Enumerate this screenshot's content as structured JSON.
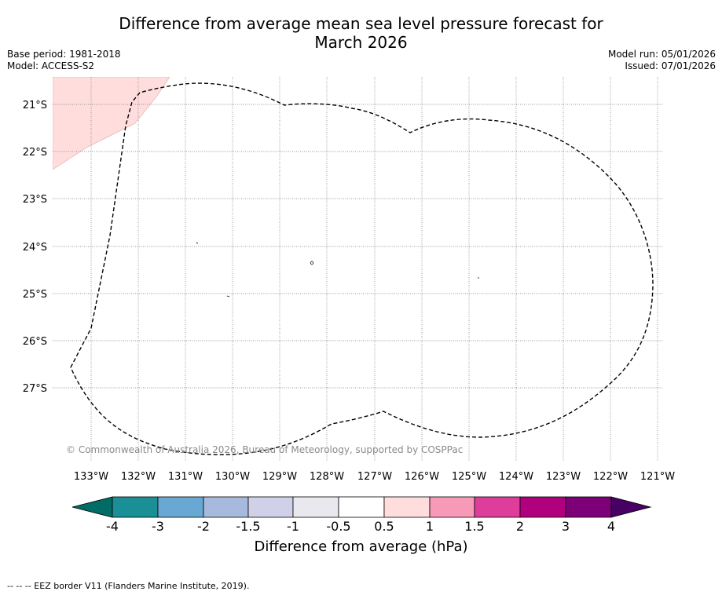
{
  "title_line1": "Difference from average mean sea level pressure forecast for",
  "title_line2": "March 2026",
  "base_period": "Base period: 1981-2018",
  "model": "Model: ACCESS-S2",
  "model_run": "Model run: 05/01/2026",
  "issued": "Issued: 07/01/2026",
  "copyright": "© Commonwealth of Australia 2026, Bureau of Meteorology, supported by COSPPac",
  "longitude_labels": [
    "133°W",
    "132°W",
    "131°W",
    "130°W",
    "129°W",
    "128°W",
    "127°W",
    "126°W",
    "125°W",
    "124°W",
    "123°W",
    "122°W",
    "121°W"
  ],
  "latitude_labels": [
    "21°S",
    "22°S",
    "23°S",
    "24°S",
    "25°S",
    "26°S",
    "27°S"
  ],
  "colorbar": {
    "title": "Difference from average (hPa)",
    "ticks": [
      "-4",
      "-3",
      "-2",
      "-1.5",
      "-1",
      "-0.5",
      "0.5",
      "1",
      "1.5",
      "2",
      "3",
      "4"
    ],
    "colors": [
      "#1a8f96",
      "#68a8d2",
      "#a7badd",
      "#d0d0e8",
      "#e8e8ee",
      "#ffffff",
      "#ffdddd",
      "#f79ab8",
      "#de3d9c",
      "#b0007d",
      "#7e0078"
    ],
    "extend_low": "#006c66",
    "extend_high": "#470064"
  },
  "shading_color": "#ffdddd",
  "footnote": "--  --  -- EEZ border V11 (Flanders Marine Institute, 2019)."
}
